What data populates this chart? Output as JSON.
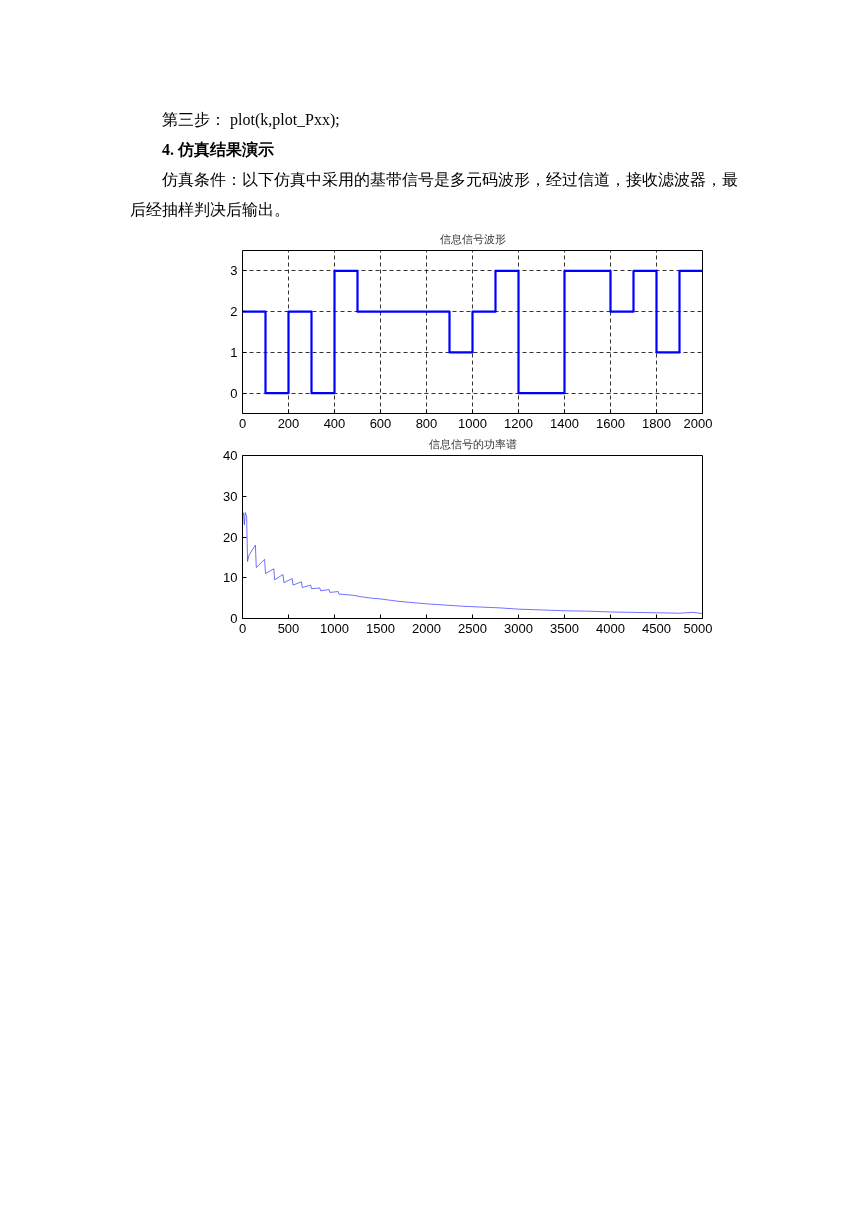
{
  "chart_data": [
    {
      "type": "step",
      "title": "信息信号波形",
      "annotations": [
        "第三步：  plot(k,plot_Pxx);",
        "4. 仿真结果演示",
        "仿真条件：以下仿真中采用的基带信号是多元码波形，经过信道，接收滤波器，最后经抽样判决后输出。"
      ],
      "x": [
        0,
        100,
        200,
        300,
        400,
        500,
        600,
        700,
        800,
        900,
        1000,
        1100,
        1200,
        1300,
        1400,
        1500,
        1600,
        1700,
        1800,
        1900,
        2000
      ],
      "series": [
        {
          "color": "#0000ff",
          "values": [
            2,
            0,
            2,
            0,
            3,
            2,
            2,
            2,
            2,
            1,
            2,
            3,
            0,
            0,
            3,
            3,
            2,
            3,
            1,
            3,
            3
          ]
        }
      ],
      "xlim": [
        0,
        2000
      ],
      "xticks": [
        0,
        200,
        400,
        600,
        800,
        1000,
        1200,
        1400,
        1600,
        1800,
        2000
      ],
      "ylim": [
        -0.5,
        3.5
      ],
      "yticks": [
        0,
        1,
        2,
        3
      ],
      "grid": true,
      "line_style": "solid"
    },
    {
      "type": "line",
      "title": "信息信号的功率谱",
      "x": [
        10,
        20,
        30,
        45,
        55,
        70,
        140,
        150,
        240,
        250,
        340,
        350,
        440,
        450,
        540,
        550,
        640,
        650,
        740,
        750,
        840,
        850,
        940,
        950,
        1040,
        1050,
        1200,
        1300,
        1400,
        1500,
        1600,
        1700,
        1800,
        1900,
        2000,
        2200,
        2400,
        2600,
        2800,
        3000,
        3250,
        3500,
        3750,
        4000,
        4250,
        4500,
        4750,
        4900,
        5000
      ],
      "series": [
        {
          "color": "#3333ff",
          "values": [
            26,
            23,
            26,
            25,
            14,
            15.5,
            18,
            12.5,
            14.5,
            11,
            12.2,
            9.5,
            10.8,
            8.8,
            9.8,
            8.2,
            9,
            7.6,
            8.2,
            7.3,
            7.5,
            6.8,
            7.1,
            6.4,
            6.6,
            6,
            5.7,
            5.3,
            5,
            4.8,
            4.5,
            4.2,
            4,
            3.8,
            3.6,
            3.3,
            3,
            2.8,
            2.6,
            2.3,
            2.1,
            1.9,
            1.8,
            1.6,
            1.5,
            1.4,
            1.3,
            1.5,
            1.2
          ]
        }
      ],
      "xlim": [
        0,
        5000
      ],
      "xticks": [
        0,
        500,
        1000,
        1500,
        2000,
        2500,
        3000,
        3500,
        4000,
        4500,
        5000
      ],
      "ylim": [
        0,
        40
      ],
      "yticks": [
        0,
        10,
        20,
        30,
        40
      ],
      "grid": false,
      "line_style": "solid"
    }
  ]
}
